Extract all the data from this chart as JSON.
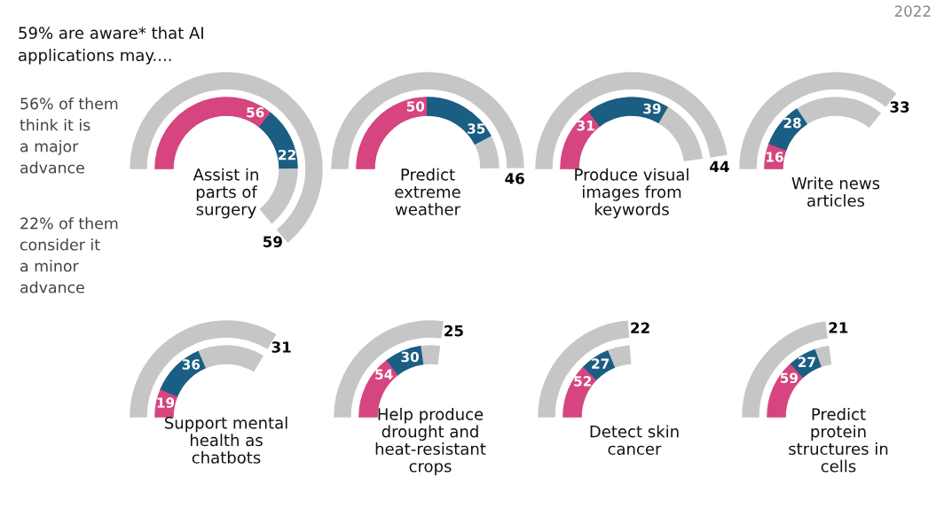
{
  "chart_data": {
    "type": "other",
    "categories": [
      "Assist in parts of surgery",
      "Predict extreme weather",
      "Produce visual images from keywords",
      "Write news articles",
      "Support mental health as chatbots",
      "Help produce drought and heat-resistant crops",
      "Detect skin cancer",
      "Predict protein structures in cells"
    ],
    "series": [
      {
        "color": "#c6c6c6",
        "values": [
          59,
          46,
          44,
          33,
          31,
          25,
          22,
          21
        ]
      },
      {
        "color": "#d6457f",
        "values": [
          56,
          50,
          31,
          16,
          19,
          54,
          52,
          59
        ]
      },
      {
        "color": "#1b5e83",
        "values": [
          22,
          35,
          39,
          28,
          36,
          30,
          27,
          27
        ]
      }
    ],
    "data_labels": true,
    "annotations": [
      "59% are aware* that AI applications may....",
      "56% of them think it is a major advance",
      "22% of them consider it a minor advance",
      "2022"
    ]
  }
}
